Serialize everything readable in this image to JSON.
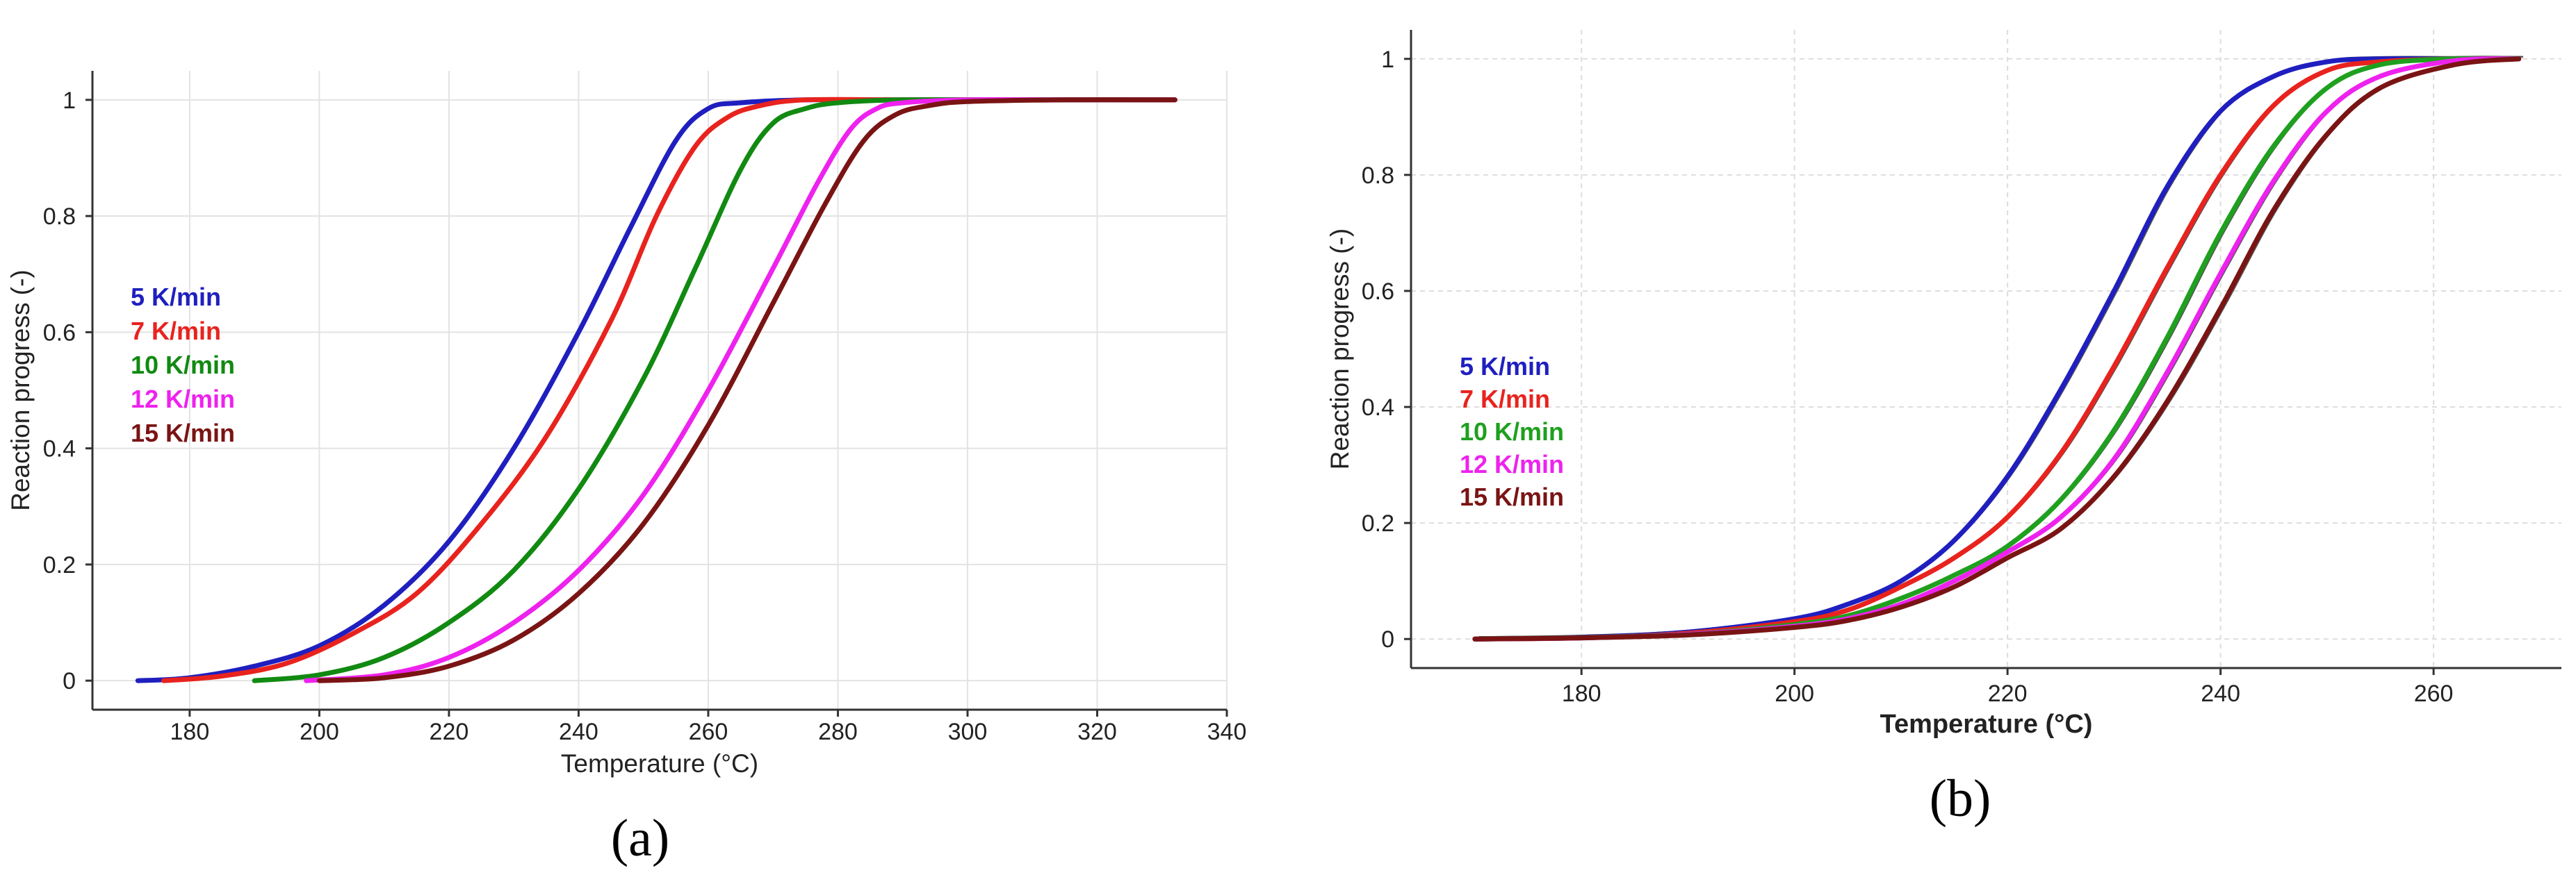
{
  "chart_data": [
    {
      "panel": "a",
      "type": "line",
      "caption": "(a)",
      "xlabel": "Temperature (°C)",
      "ylabel": "Reaction progress (-)",
      "xlim": [
        165,
        340
      ],
      "ylim": [
        -0.05,
        1.05
      ],
      "xticks": [
        180,
        200,
        220,
        240,
        260,
        280,
        300,
        320,
        340
      ],
      "yticks": [
        0,
        0.2,
        0.4,
        0.6,
        0.8,
        1
      ],
      "ytick_labels": [
        "0",
        "0.2",
        "0.4",
        "0.6",
        "0.8",
        "1"
      ],
      "grid": true,
      "legend_position": "left-middle",
      "series": [
        {
          "name": "5 K/min",
          "color": "#1f1fbf",
          "x": [
            172,
            180,
            190,
            200,
            210,
            220,
            230,
            240,
            248,
            255,
            260,
            265,
            275,
            290,
            310,
            332
          ],
          "y": [
            0,
            0.005,
            0.025,
            0.06,
            0.13,
            0.24,
            0.4,
            0.6,
            0.78,
            0.93,
            0.985,
            0.995,
            1,
            1,
            1,
            1
          ]
        },
        {
          "name": "7 K/min",
          "color": "#e8231e",
          "x": [
            176,
            185,
            195,
            205,
            215,
            225,
            235,
            245,
            252,
            258,
            263,
            268,
            275,
            290,
            310,
            332
          ],
          "y": [
            0,
            0.008,
            0.03,
            0.08,
            0.15,
            0.27,
            0.42,
            0.62,
            0.8,
            0.92,
            0.97,
            0.99,
            1,
            1,
            1,
            1
          ]
        },
        {
          "name": "10 K/min",
          "color": "#118a11",
          "x": [
            190,
            200,
            210,
            220,
            230,
            240,
            250,
            258,
            265,
            270,
            275,
            280,
            290,
            310,
            332
          ],
          "y": [
            0,
            0.01,
            0.04,
            0.1,
            0.19,
            0.33,
            0.52,
            0.71,
            0.88,
            0.96,
            0.985,
            0.995,
            1,
            1,
            1
          ]
        },
        {
          "name": "12 K/min",
          "color": "#ee22ee",
          "x": [
            198,
            210,
            220,
            230,
            240,
            250,
            260,
            270,
            277,
            282,
            286,
            290,
            300,
            315,
            332
          ],
          "y": [
            0,
            0.01,
            0.04,
            0.1,
            0.19,
            0.32,
            0.5,
            0.71,
            0.86,
            0.95,
            0.985,
            0.995,
            1,
            1,
            1
          ]
        },
        {
          "name": "15 K/min",
          "color": "#7a1414",
          "x": [
            200,
            210,
            220,
            230,
            240,
            250,
            260,
            270,
            278,
            284,
            289,
            294,
            300,
            315,
            332
          ],
          "y": [
            0,
            0.005,
            0.025,
            0.07,
            0.15,
            0.27,
            0.44,
            0.65,
            0.82,
            0.93,
            0.975,
            0.99,
            0.997,
            1,
            1
          ]
        }
      ]
    },
    {
      "panel": "b",
      "type": "line",
      "caption": "(b)",
      "xlabel": "Temperature (°C)",
      "ylabel": "Reaction progress (-)",
      "xlim": [
        164,
        272
      ],
      "ylim": [
        -0.05,
        1.05
      ],
      "xticks": [
        180,
        200,
        220,
        240,
        260
      ],
      "yticks": [
        0,
        0.2,
        0.4,
        0.6,
        0.8,
        1
      ],
      "ytick_labels": [
        "0",
        "0.2",
        "0.4",
        "0.6",
        "0.8",
        "1"
      ],
      "grid": true,
      "legend_position": "left-middle",
      "series": [
        {
          "name": "5 K/min",
          "color": "#1f1fbf",
          "x": [
            170,
            180,
            190,
            200,
            205,
            210,
            215,
            220,
            225,
            230,
            235,
            240,
            245,
            250,
            255,
            262,
            268
          ],
          "y": [
            0,
            0.003,
            0.012,
            0.035,
            0.06,
            0.1,
            0.17,
            0.28,
            0.43,
            0.6,
            0.78,
            0.91,
            0.97,
            0.995,
            1,
            1,
            1
          ]
        },
        {
          "name": "7 K/min",
          "color": "#e8231e",
          "x": [
            170,
            180,
            190,
            200,
            205,
            210,
            215,
            220,
            225,
            230,
            235,
            240,
            245,
            250,
            255,
            262,
            268
          ],
          "y": [
            0,
            0.002,
            0.01,
            0.03,
            0.05,
            0.09,
            0.14,
            0.21,
            0.32,
            0.47,
            0.64,
            0.8,
            0.92,
            0.98,
            0.995,
            1,
            1
          ]
        },
        {
          "name": "10 K/min",
          "color": "#1fa01f",
          "x": [
            170,
            180,
            190,
            200,
            205,
            210,
            215,
            220,
            225,
            230,
            235,
            240,
            245,
            250,
            255,
            262,
            268
          ],
          "y": [
            0,
            0.002,
            0.008,
            0.025,
            0.04,
            0.07,
            0.11,
            0.16,
            0.24,
            0.36,
            0.52,
            0.7,
            0.85,
            0.95,
            0.99,
            1,
            1
          ]
        },
        {
          "name": "12 K/min",
          "color": "#ee22ee",
          "x": [
            170,
            180,
            190,
            200,
            205,
            210,
            215,
            220,
            225,
            230,
            235,
            240,
            245,
            250,
            255,
            262,
            268
          ],
          "y": [
            0,
            0.002,
            0.008,
            0.022,
            0.035,
            0.06,
            0.1,
            0.15,
            0.21,
            0.31,
            0.46,
            0.63,
            0.79,
            0.91,
            0.97,
            0.997,
            1
          ]
        },
        {
          "name": "15 K/min",
          "color": "#7a1414",
          "x": [
            170,
            180,
            190,
            200,
            205,
            210,
            215,
            220,
            225,
            230,
            235,
            240,
            245,
            250,
            255,
            262,
            268
          ],
          "y": [
            0,
            0.002,
            0.007,
            0.02,
            0.032,
            0.055,
            0.09,
            0.14,
            0.19,
            0.28,
            0.41,
            0.57,
            0.74,
            0.87,
            0.95,
            0.99,
            1
          ]
        }
      ]
    }
  ]
}
